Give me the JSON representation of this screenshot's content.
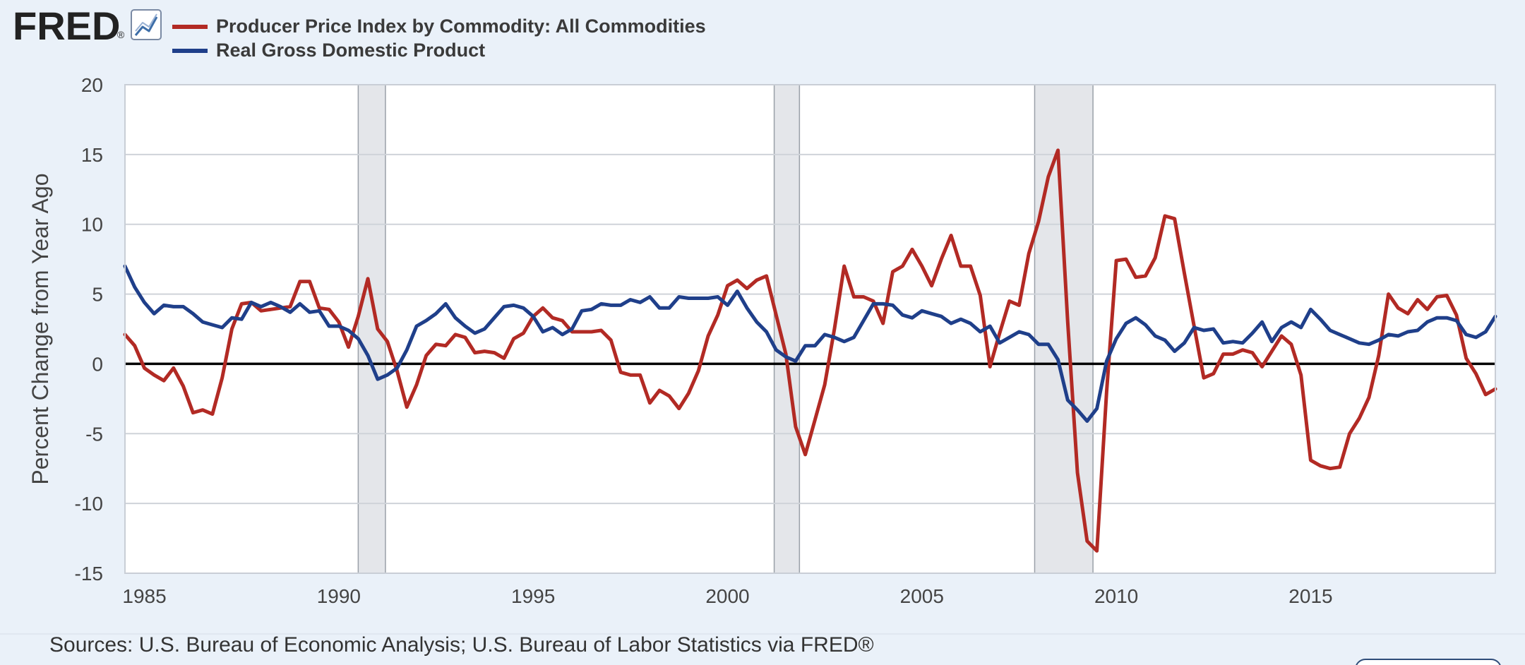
{
  "header": {
    "logo_text": "FRED",
    "logo_mark": "®",
    "logo_icon": "chart-line-icon"
  },
  "footer": {
    "sources": "Sources: U.S. Bureau of Economic Analysis; U.S. Bureau of Labor Statistics via FRED®"
  },
  "colors": {
    "ppi": "#b22a24",
    "gdp": "#1f3f8a",
    "recession": "#e4e6ea",
    "page_bg": "#eaf1f9",
    "plot_bg": "#ffffff"
  },
  "chart_data": {
    "type": "line",
    "title": "",
    "xlabel": "",
    "ylabel": "Percent Change from Year Ago",
    "xlim": [
      1984.5,
      2019.75
    ],
    "ylim": [
      -15,
      20
    ],
    "x_ticks": [
      1985,
      1990,
      1995,
      2000,
      2005,
      2010,
      2015
    ],
    "x_tick_labels": [
      "1985",
      "1990",
      "1995",
      "2000",
      "2005",
      "2010",
      "2015"
    ],
    "y_ticks": [
      20,
      15,
      10,
      5,
      0,
      -5,
      -10,
      -15
    ],
    "y_tick_labels": [
      "20",
      "15",
      "10",
      "5",
      "0",
      "-5",
      "-10",
      "-15"
    ],
    "grid": true,
    "legend_position": "top-left",
    "recessions": [
      [
        1990.5,
        1991.2
      ],
      [
        2001.2,
        2001.85
      ],
      [
        2007.9,
        2009.4
      ]
    ],
    "series": [
      {
        "name": "Producer Price Index by Commodity: All Commodities",
        "color": "#b22a24",
        "points": [
          [
            1984.5,
            2.1
          ],
          [
            1984.75,
            1.3
          ],
          [
            1985.0,
            -0.3
          ],
          [
            1985.25,
            -0.8
          ],
          [
            1985.5,
            -1.2
          ],
          [
            1985.75,
            -0.3
          ],
          [
            1986.0,
            -1.6
          ],
          [
            1986.25,
            -3.5
          ],
          [
            1986.5,
            -3.3
          ],
          [
            1986.75,
            -3.6
          ],
          [
            1987.0,
            -1.0
          ],
          [
            1987.25,
            2.5
          ],
          [
            1987.5,
            4.3
          ],
          [
            1987.75,
            4.4
          ],
          [
            1988.0,
            3.8
          ],
          [
            1988.25,
            3.9
          ],
          [
            1988.5,
            4.0
          ],
          [
            1988.75,
            4.1
          ],
          [
            1989.0,
            5.9
          ],
          [
            1989.25,
            5.9
          ],
          [
            1989.5,
            4.0
          ],
          [
            1989.75,
            3.9
          ],
          [
            1990.0,
            3.0
          ],
          [
            1990.25,
            1.2
          ],
          [
            1990.5,
            3.4
          ],
          [
            1990.75,
            6.1
          ],
          [
            1991.0,
            2.5
          ],
          [
            1991.25,
            1.6
          ],
          [
            1991.5,
            -0.5
          ],
          [
            1991.75,
            -3.1
          ],
          [
            1992.0,
            -1.5
          ],
          [
            1992.25,
            0.6
          ],
          [
            1992.5,
            1.4
          ],
          [
            1992.75,
            1.3
          ],
          [
            1993.0,
            2.1
          ],
          [
            1993.25,
            1.9
          ],
          [
            1993.5,
            0.8
          ],
          [
            1993.75,
            0.9
          ],
          [
            1994.0,
            0.8
          ],
          [
            1994.25,
            0.4
          ],
          [
            1994.5,
            1.8
          ],
          [
            1994.75,
            2.2
          ],
          [
            1995.0,
            3.4
          ],
          [
            1995.25,
            4.0
          ],
          [
            1995.5,
            3.3
          ],
          [
            1995.75,
            3.1
          ],
          [
            1996.0,
            2.3
          ],
          [
            1996.25,
            2.3
          ],
          [
            1996.5,
            2.3
          ],
          [
            1996.75,
            2.4
          ],
          [
            1997.0,
            1.7
          ],
          [
            1997.25,
            -0.6
          ],
          [
            1997.5,
            -0.8
          ],
          [
            1997.75,
            -0.8
          ],
          [
            1998.0,
            -2.8
          ],
          [
            1998.25,
            -1.9
          ],
          [
            1998.5,
            -2.3
          ],
          [
            1998.75,
            -3.2
          ],
          [
            1999.0,
            -2.1
          ],
          [
            1999.25,
            -0.5
          ],
          [
            1999.5,
            2.0
          ],
          [
            1999.75,
            3.5
          ],
          [
            2000.0,
            5.6
          ],
          [
            2000.25,
            6.0
          ],
          [
            2000.5,
            5.4
          ],
          [
            2000.75,
            6.0
          ],
          [
            2001.0,
            6.3
          ],
          [
            2001.25,
            3.5
          ],
          [
            2001.5,
            0.7
          ],
          [
            2001.75,
            -4.5
          ],
          [
            2002.0,
            -6.5
          ],
          [
            2002.25,
            -4.0
          ],
          [
            2002.5,
            -1.5
          ],
          [
            2002.75,
            2.5
          ],
          [
            2003.0,
            7.0
          ],
          [
            2003.25,
            4.8
          ],
          [
            2003.5,
            4.8
          ],
          [
            2003.75,
            4.5
          ],
          [
            2004.0,
            2.9
          ],
          [
            2004.25,
            6.6
          ],
          [
            2004.5,
            7.0
          ],
          [
            2004.75,
            8.2
          ],
          [
            2005.0,
            7.0
          ],
          [
            2005.25,
            5.6
          ],
          [
            2005.5,
            7.5
          ],
          [
            2005.75,
            9.2
          ],
          [
            2006.0,
            7.0
          ],
          [
            2006.25,
            7.0
          ],
          [
            2006.5,
            4.9
          ],
          [
            2006.75,
            -0.2
          ],
          [
            2007.0,
            2.2
          ],
          [
            2007.25,
            4.5
          ],
          [
            2007.5,
            4.2
          ],
          [
            2007.75,
            7.9
          ],
          [
            2008.0,
            10.2
          ],
          [
            2008.25,
            13.4
          ],
          [
            2008.5,
            15.3
          ],
          [
            2008.75,
            3.0
          ],
          [
            2009.0,
            -7.8
          ],
          [
            2009.25,
            -12.7
          ],
          [
            2009.5,
            -13.4
          ],
          [
            2009.75,
            -2.0
          ],
          [
            2010.0,
            7.4
          ],
          [
            2010.25,
            7.5
          ],
          [
            2010.5,
            6.2
          ],
          [
            2010.75,
            6.3
          ],
          [
            2011.0,
            7.6
          ],
          [
            2011.25,
            10.6
          ],
          [
            2011.5,
            10.4
          ],
          [
            2011.75,
            6.5
          ],
          [
            2012.0,
            2.7
          ],
          [
            2012.25,
            -1.0
          ],
          [
            2012.5,
            -0.7
          ],
          [
            2012.75,
            0.7
          ],
          [
            2013.0,
            0.7
          ],
          [
            2013.25,
            1.0
          ],
          [
            2013.5,
            0.8
          ],
          [
            2013.75,
            -0.2
          ],
          [
            2014.0,
            0.9
          ],
          [
            2014.25,
            2.0
          ],
          [
            2014.5,
            1.4
          ],
          [
            2014.75,
            -0.8
          ],
          [
            2015.0,
            -6.9
          ],
          [
            2015.25,
            -7.3
          ],
          [
            2015.5,
            -7.5
          ],
          [
            2015.75,
            -7.4
          ],
          [
            2016.0,
            -5.0
          ],
          [
            2016.25,
            -3.9
          ],
          [
            2016.5,
            -2.4
          ],
          [
            2016.75,
            0.6
          ],
          [
            2017.0,
            5.0
          ],
          [
            2017.25,
            4.0
          ],
          [
            2017.5,
            3.6
          ],
          [
            2017.75,
            4.6
          ],
          [
            2018.0,
            3.9
          ],
          [
            2018.25,
            4.8
          ],
          [
            2018.5,
            4.9
          ],
          [
            2018.75,
            3.5
          ],
          [
            2019.0,
            0.4
          ],
          [
            2019.25,
            -0.7
          ],
          [
            2019.5,
            -2.2
          ],
          [
            2019.75,
            -1.8
          ]
        ]
      },
      {
        "name": "Real Gross Domestic Product",
        "color": "#1f3f8a",
        "points": [
          [
            1984.5,
            7.0
          ],
          [
            1984.75,
            5.5
          ],
          [
            1985.0,
            4.4
          ],
          [
            1985.25,
            3.6
          ],
          [
            1985.5,
            4.2
          ],
          [
            1985.75,
            4.1
          ],
          [
            1986.0,
            4.1
          ],
          [
            1986.25,
            3.6
          ],
          [
            1986.5,
            3.0
          ],
          [
            1986.75,
            2.8
          ],
          [
            1987.0,
            2.6
          ],
          [
            1987.25,
            3.3
          ],
          [
            1987.5,
            3.2
          ],
          [
            1987.75,
            4.4
          ],
          [
            1988.0,
            4.1
          ],
          [
            1988.25,
            4.4
          ],
          [
            1988.5,
            4.1
          ],
          [
            1988.75,
            3.7
          ],
          [
            1989.0,
            4.3
          ],
          [
            1989.25,
            3.7
          ],
          [
            1989.5,
            3.8
          ],
          [
            1989.75,
            2.7
          ],
          [
            1990.0,
            2.7
          ],
          [
            1990.25,
            2.4
          ],
          [
            1990.5,
            1.8
          ],
          [
            1990.75,
            0.6
          ],
          [
            1991.0,
            -1.1
          ],
          [
            1991.25,
            -0.8
          ],
          [
            1991.5,
            -0.3
          ],
          [
            1991.75,
            1.0
          ],
          [
            1992.0,
            2.7
          ],
          [
            1992.25,
            3.1
          ],
          [
            1992.5,
            3.6
          ],
          [
            1992.75,
            4.3
          ],
          [
            1993.0,
            3.3
          ],
          [
            1993.25,
            2.7
          ],
          [
            1993.5,
            2.2
          ],
          [
            1993.75,
            2.5
          ],
          [
            1994.0,
            3.3
          ],
          [
            1994.25,
            4.1
          ],
          [
            1994.5,
            4.2
          ],
          [
            1994.75,
            4.0
          ],
          [
            1995.0,
            3.4
          ],
          [
            1995.25,
            2.3
          ],
          [
            1995.5,
            2.6
          ],
          [
            1995.75,
            2.1
          ],
          [
            1996.0,
            2.5
          ],
          [
            1996.25,
            3.8
          ],
          [
            1996.5,
            3.9
          ],
          [
            1996.75,
            4.3
          ],
          [
            1997.0,
            4.2
          ],
          [
            1997.25,
            4.2
          ],
          [
            1997.5,
            4.6
          ],
          [
            1997.75,
            4.4
          ],
          [
            1998.0,
            4.8
          ],
          [
            1998.25,
            4.0
          ],
          [
            1998.5,
            4.0
          ],
          [
            1998.75,
            4.8
          ],
          [
            1999.0,
            4.7
          ],
          [
            1999.25,
            4.7
          ],
          [
            1999.5,
            4.7
          ],
          [
            1999.75,
            4.8
          ],
          [
            2000.0,
            4.2
          ],
          [
            2000.25,
            5.2
          ],
          [
            2000.5,
            4.0
          ],
          [
            2000.75,
            3.0
          ],
          [
            2001.0,
            2.3
          ],
          [
            2001.25,
            1.0
          ],
          [
            2001.5,
            0.5
          ],
          [
            2001.75,
            0.2
          ],
          [
            2002.0,
            1.3
          ],
          [
            2002.25,
            1.3
          ],
          [
            2002.5,
            2.1
          ],
          [
            2002.75,
            1.9
          ],
          [
            2003.0,
            1.6
          ],
          [
            2003.25,
            1.9
          ],
          [
            2003.5,
            3.1
          ],
          [
            2003.75,
            4.3
          ],
          [
            2004.0,
            4.3
          ],
          [
            2004.25,
            4.2
          ],
          [
            2004.5,
            3.5
          ],
          [
            2004.75,
            3.3
          ],
          [
            2005.0,
            3.8
          ],
          [
            2005.25,
            3.6
          ],
          [
            2005.5,
            3.4
          ],
          [
            2005.75,
            2.9
          ],
          [
            2006.0,
            3.2
          ],
          [
            2006.25,
            2.9
          ],
          [
            2006.5,
            2.3
          ],
          [
            2006.75,
            2.7
          ],
          [
            2007.0,
            1.5
          ],
          [
            2007.25,
            1.9
          ],
          [
            2007.5,
            2.3
          ],
          [
            2007.75,
            2.1
          ],
          [
            2008.0,
            1.4
          ],
          [
            2008.25,
            1.4
          ],
          [
            2008.5,
            0.3
          ],
          [
            2008.75,
            -2.6
          ],
          [
            2009.0,
            -3.3
          ],
          [
            2009.25,
            -4.1
          ],
          [
            2009.5,
            -3.2
          ],
          [
            2009.75,
            0.2
          ],
          [
            2010.0,
            1.8
          ],
          [
            2010.25,
            2.9
          ],
          [
            2010.5,
            3.3
          ],
          [
            2010.75,
            2.8
          ],
          [
            2011.0,
            2.0
          ],
          [
            2011.25,
            1.7
          ],
          [
            2011.5,
            0.9
          ],
          [
            2011.75,
            1.5
          ],
          [
            2012.0,
            2.6
          ],
          [
            2012.25,
            2.4
          ],
          [
            2012.5,
            2.5
          ],
          [
            2012.75,
            1.5
          ],
          [
            2013.0,
            1.6
          ],
          [
            2013.25,
            1.5
          ],
          [
            2013.5,
            2.2
          ],
          [
            2013.75,
            3.0
          ],
          [
            2014.0,
            1.6
          ],
          [
            2014.25,
            2.6
          ],
          [
            2014.5,
            3.0
          ],
          [
            2014.75,
            2.6
          ],
          [
            2015.0,
            3.9
          ],
          [
            2015.25,
            3.2
          ],
          [
            2015.5,
            2.4
          ],
          [
            2015.75,
            2.1
          ],
          [
            2016.0,
            1.8
          ],
          [
            2016.25,
            1.5
          ],
          [
            2016.5,
            1.4
          ],
          [
            2016.75,
            1.7
          ],
          [
            2017.0,
            2.1
          ],
          [
            2017.25,
            2.0
          ],
          [
            2017.5,
            2.3
          ],
          [
            2017.75,
            2.4
          ],
          [
            2018.0,
            3.0
          ],
          [
            2018.25,
            3.3
          ],
          [
            2018.5,
            3.3
          ],
          [
            2018.75,
            3.1
          ],
          [
            2019.0,
            2.1
          ],
          [
            2019.25,
            1.9
          ],
          [
            2019.5,
            2.3
          ],
          [
            2019.75,
            3.4
          ]
        ]
      }
    ]
  }
}
